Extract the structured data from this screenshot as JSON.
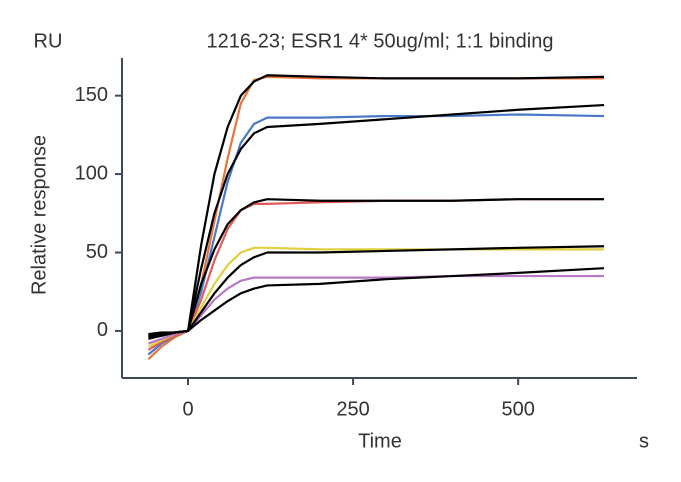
{
  "chart_data": {
    "type": "line",
    "title": "1216-23; ESR1 4*  50ug/ml; 1:1 binding",
    "y_unit": "RU",
    "x_unit": "s",
    "xlabel": "Time",
    "ylabel": "Relative response",
    "xlim": [
      -100,
      680
    ],
    "ylim": [
      -30,
      174
    ],
    "xticks": [
      0,
      250,
      500
    ],
    "yticks": [
      0,
      50,
      100,
      150
    ],
    "x": [
      -60,
      -40,
      -20,
      0,
      20,
      40,
      60,
      80,
      100,
      120,
      200,
      300,
      400,
      500,
      630
    ],
    "series": [
      {
        "color": "#e8743b",
        "values": [
          -18,
          -10,
          -4,
          0,
          30,
          70,
          110,
          145,
          160,
          162,
          161,
          161,
          161,
          161,
          161
        ]
      },
      {
        "color": "#4a78c8",
        "values": [
          -15,
          -8,
          -3,
          0,
          25,
          60,
          95,
          120,
          132,
          136,
          136,
          137,
          137,
          138,
          137
        ]
      },
      {
        "color": "#e05a5a",
        "values": [
          -12,
          -7,
          -3,
          0,
          20,
          45,
          65,
          77,
          81,
          81,
          82,
          83,
          83,
          84,
          84
        ]
      },
      {
        "color": "#e0d040",
        "values": [
          -10,
          -6,
          -2,
          0,
          15,
          30,
          42,
          50,
          53,
          53,
          52,
          52,
          52,
          52,
          52
        ]
      },
      {
        "color": "#b878c8",
        "values": [
          -8,
          -5,
          -2,
          0,
          10,
          20,
          27,
          32,
          34,
          34,
          34,
          34,
          35,
          35,
          35
        ]
      },
      {
        "color": "#000000",
        "values": [
          -2,
          -1,
          -1,
          0,
          55,
          100,
          130,
          150,
          159,
          163,
          162,
          161,
          161,
          161,
          162
        ]
      },
      {
        "color": "#000000",
        "values": [
          -3,
          -2,
          -1,
          0,
          40,
          75,
          100,
          116,
          126,
          130,
          132,
          135,
          138,
          141,
          144
        ]
      },
      {
        "color": "#000000",
        "values": [
          -3,
          -2,
          -1,
          0,
          30,
          52,
          68,
          77,
          82,
          84,
          83,
          83,
          83,
          84,
          84
        ]
      },
      {
        "color": "#000000",
        "values": [
          -4,
          -3,
          -1,
          0,
          12,
          24,
          34,
          42,
          47,
          50,
          50,
          51,
          52,
          53,
          54
        ]
      },
      {
        "color": "#000000",
        "values": [
          -5,
          -3,
          -1,
          0,
          7,
          13,
          19,
          24,
          27,
          29,
          30,
          33,
          35,
          37,
          40
        ]
      }
    ]
  }
}
